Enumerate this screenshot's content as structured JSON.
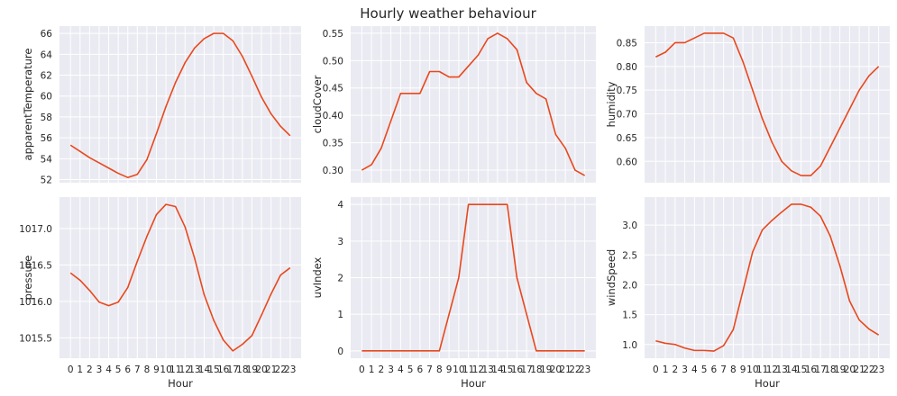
{
  "title": "Hourly weather behaviour",
  "colors": {
    "line": "#e8481c",
    "panel_bg": "#eaeaf2",
    "grid": "#ffffff"
  },
  "chart_data": [
    {
      "type": "line",
      "xlabel": "",
      "ylabel": "apparentTemperature",
      "x": [
        0,
        1,
        2,
        3,
        4,
        5,
        6,
        7,
        8,
        9,
        10,
        11,
        12,
        13,
        14,
        15,
        16,
        17,
        18,
        19,
        20,
        21,
        22,
        23
      ],
      "y": [
        55.3,
        54.7,
        54.1,
        53.6,
        53.1,
        52.6,
        52.2,
        52.5,
        53.9,
        56.4,
        59.0,
        61.3,
        63.2,
        64.6,
        65.5,
        66.0,
        66.0,
        65.3,
        63.8,
        61.9,
        59.9,
        58.3,
        57.1,
        56.2
      ],
      "ylim": [
        51.7,
        66.7
      ],
      "yticks": [
        52,
        54,
        56,
        58,
        60,
        62,
        64,
        66
      ],
      "ytick_labels": [
        "52",
        "54",
        "56",
        "58",
        "60",
        "62",
        "64",
        "66"
      ],
      "xtick_labels": [],
      "grid": true
    },
    {
      "type": "line",
      "xlabel": "",
      "ylabel": "cloudCover",
      "x": [
        0,
        1,
        2,
        3,
        4,
        5,
        6,
        7,
        8,
        9,
        10,
        11,
        12,
        13,
        14,
        15,
        16,
        17,
        18,
        19,
        20,
        21,
        22,
        23
      ],
      "y": [
        0.3,
        0.31,
        0.34,
        0.39,
        0.44,
        0.44,
        0.44,
        0.48,
        0.48,
        0.47,
        0.47,
        0.49,
        0.51,
        0.54,
        0.55,
        0.54,
        0.52,
        0.46,
        0.44,
        0.43,
        0.365,
        0.34,
        0.3,
        0.29
      ],
      "ylim": [
        0.277,
        0.563
      ],
      "yticks": [
        0.3,
        0.35,
        0.4,
        0.45,
        0.5,
        0.55
      ],
      "ytick_labels": [
        "0.30",
        "0.35",
        "0.40",
        "0.45",
        "0.50",
        "0.55"
      ],
      "xtick_labels": [],
      "grid": true
    },
    {
      "type": "line",
      "xlabel": "",
      "ylabel": "humidity",
      "x": [
        0,
        1,
        2,
        3,
        4,
        5,
        6,
        7,
        8,
        9,
        10,
        11,
        12,
        13,
        14,
        15,
        16,
        17,
        18,
        19,
        20,
        21,
        22,
        23
      ],
      "y": [
        0.82,
        0.83,
        0.85,
        0.85,
        0.86,
        0.87,
        0.87,
        0.87,
        0.86,
        0.81,
        0.75,
        0.69,
        0.64,
        0.6,
        0.58,
        0.57,
        0.57,
        0.59,
        0.63,
        0.67,
        0.71,
        0.75,
        0.78,
        0.8
      ],
      "ylim": [
        0.555,
        0.885
      ],
      "yticks": [
        0.6,
        0.65,
        0.7,
        0.75,
        0.8,
        0.85
      ],
      "ytick_labels": [
        "0.60",
        "0.65",
        "0.70",
        "0.75",
        "0.80",
        "0.85"
      ],
      "xtick_labels": [],
      "grid": true
    },
    {
      "type": "line",
      "xlabel": "Hour",
      "ylabel": "pressure",
      "x": [
        0,
        1,
        2,
        3,
        4,
        5,
        6,
        7,
        8,
        9,
        10,
        11,
        12,
        13,
        14,
        15,
        16,
        17,
        18,
        19,
        20,
        21,
        22,
        23
      ],
      "y": [
        1016.39,
        1016.29,
        1016.15,
        1015.99,
        1015.94,
        1015.99,
        1016.19,
        1016.55,
        1016.89,
        1017.19,
        1017.33,
        1017.3,
        1017.02,
        1016.59,
        1016.09,
        1015.74,
        1015.47,
        1015.32,
        1015.41,
        1015.53,
        1015.81,
        1016.1,
        1016.36,
        1016.46
      ],
      "ylim": [
        1015.22,
        1017.43
      ],
      "yticks": [
        1015.5,
        1016.0,
        1016.5,
        1017.0
      ],
      "ytick_labels": [
        "1015.5",
        "1016.0",
        "1016.5",
        "1017.0"
      ],
      "xtick_labels": [
        "0",
        "1",
        "2",
        "3",
        "4",
        "5",
        "6",
        "7",
        "8",
        "9",
        "10",
        "11",
        "12",
        "13",
        "14",
        "15",
        "16",
        "17",
        "18",
        "19",
        "20",
        "21",
        "22",
        "23"
      ],
      "grid": true
    },
    {
      "type": "line",
      "xlabel": "Hour",
      "ylabel": "uvIndex",
      "x": [
        0,
        1,
        2,
        3,
        4,
        5,
        6,
        7,
        8,
        9,
        10,
        11,
        12,
        13,
        14,
        15,
        16,
        17,
        18,
        19,
        20,
        21,
        22,
        23
      ],
      "y": [
        0,
        0,
        0,
        0,
        0,
        0,
        0,
        0,
        0,
        1,
        2,
        4,
        4,
        4,
        4,
        4,
        2,
        1,
        0,
        0,
        0,
        0,
        0,
        0
      ],
      "ylim": [
        -0.2,
        4.2
      ],
      "yticks": [
        0,
        1,
        2,
        3,
        4
      ],
      "ytick_labels": [
        "0",
        "1",
        "2",
        "3",
        "4"
      ],
      "xtick_labels": [
        "0",
        "1",
        "2",
        "3",
        "4",
        "5",
        "6",
        "7",
        "8",
        "9",
        "10",
        "11",
        "12",
        "13",
        "14",
        "15",
        "16",
        "17",
        "18",
        "19",
        "20",
        "21",
        "22",
        "23"
      ],
      "grid": true
    },
    {
      "type": "line",
      "xlabel": "Hour",
      "ylabel": "windSpeed",
      "x": [
        0,
        1,
        2,
        3,
        4,
        5,
        6,
        7,
        8,
        9,
        10,
        11,
        12,
        13,
        14,
        15,
        16,
        17,
        18,
        19,
        20,
        21,
        22,
        23
      ],
      "y": [
        1.06,
        1.02,
        1.0,
        0.94,
        0.9,
        0.9,
        0.89,
        0.98,
        1.25,
        1.9,
        2.55,
        2.92,
        3.08,
        3.22,
        3.35,
        3.35,
        3.3,
        3.15,
        2.82,
        2.32,
        1.73,
        1.41,
        1.26,
        1.16
      ],
      "ylim": [
        0.77,
        3.47
      ],
      "yticks": [
        1.0,
        1.5,
        2.0,
        2.5,
        3.0
      ],
      "ytick_labels": [
        "1.0",
        "1.5",
        "2.0",
        "2.5",
        "3.0"
      ],
      "xtick_labels": [
        "0",
        "1",
        "2",
        "3",
        "4",
        "5",
        "6",
        "7",
        "8",
        "9",
        "10",
        "11",
        "12",
        "13",
        "14",
        "15",
        "16",
        "17",
        "18",
        "19",
        "20",
        "21",
        "22",
        "23"
      ],
      "grid": true
    }
  ]
}
